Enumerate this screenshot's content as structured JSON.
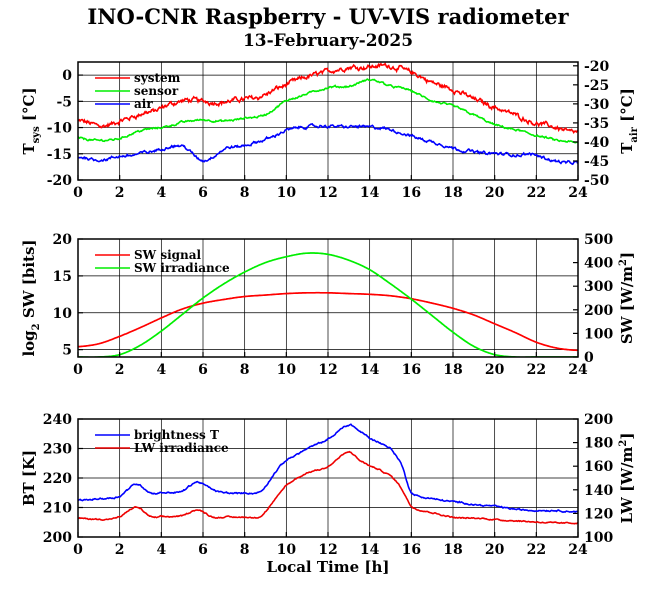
{
  "header": {
    "title": "INO-CNR Raspberry - UV-VIS radiometer",
    "date": "13-February-2025"
  },
  "chart_data": [
    {
      "type": "line",
      "xlim": [
        0,
        24
      ],
      "xticks": [
        "0",
        "2",
        "4",
        "6",
        "8",
        "10",
        "12",
        "14",
        "16",
        "18",
        "20",
        "22",
        "24"
      ],
      "ylim": [
        -20,
        2.5
      ],
      "yticks": [
        "0",
        "-5",
        "-10",
        "-15",
        "-20"
      ],
      "ylabel": "T",
      "ylabel_sub": "sys",
      "ylabel_unit": "[°C]",
      "y2lim": [
        -50,
        -19
      ],
      "y2ticks": [
        "-20",
        "-25",
        "-30",
        "-35",
        "-40",
        "-45",
        "-50"
      ],
      "y2label": "T",
      "y2label_sub": "air",
      "y2label_unit": "[°C]",
      "grid": true,
      "legend": "top-left",
      "series": [
        {
          "name": "system",
          "color": "#ff0000",
          "axis": "left",
          "noise": 0.7,
          "x": [
            0,
            1,
            2,
            3,
            4,
            5,
            6,
            7,
            8,
            9,
            10,
            11,
            12,
            13,
            14,
            15,
            16,
            17,
            18,
            19,
            20,
            21,
            22,
            23,
            24
          ],
          "y": [
            -8.8,
            -9.5,
            -9.0,
            -7.5,
            -6.5,
            -5.0,
            -5.0,
            -5.0,
            -4.5,
            -3.5,
            -1.8,
            -0.5,
            0.8,
            1.5,
            1.8,
            1.8,
            0.5,
            -1.5,
            -2.8,
            -4.5,
            -6.0,
            -7.5,
            -9.0,
            -10.0,
            -10.8
          ]
        },
        {
          "name": "sensor",
          "color": "#00ee00",
          "axis": "left",
          "noise": 0.3,
          "x": [
            0,
            1,
            2,
            3,
            4,
            5,
            6,
            7,
            8,
            9,
            10,
            11,
            12,
            13,
            14,
            15,
            16,
            17,
            18,
            19,
            20,
            21,
            22,
            23,
            24
          ],
          "y": [
            -12.0,
            -12.5,
            -12.0,
            -10.5,
            -10.0,
            -9.0,
            -8.5,
            -8.8,
            -8.3,
            -7.5,
            -5.0,
            -3.5,
            -2.5,
            -2.2,
            -1.0,
            -2.0,
            -3.0,
            -5.0,
            -6.0,
            -7.5,
            -9.5,
            -10.5,
            -11.5,
            -12.5,
            -13.0
          ]
        },
        {
          "name": "air",
          "color": "#0000ff",
          "axis": "right",
          "noise": 0.6,
          "x": [
            0,
            1,
            2,
            3,
            4,
            5,
            6,
            7,
            8,
            9,
            10,
            11,
            12,
            13,
            14,
            15,
            16,
            17,
            18,
            19,
            20,
            21,
            22,
            23,
            24
          ],
          "y": [
            -44.0,
            -44.5,
            -44.0,
            -43.0,
            -42.0,
            -41.0,
            -45.0,
            -42.0,
            -41.0,
            -39.5,
            -37.0,
            -36.0,
            -36.0,
            -36.0,
            -36.0,
            -37.0,
            -38.5,
            -40.0,
            -41.5,
            -42.5,
            -43.0,
            -43.5,
            -43.5,
            -45.0,
            -45.5
          ]
        }
      ]
    },
    {
      "type": "line",
      "xlim": [
        0,
        24
      ],
      "xticks": [
        "0",
        "2",
        "4",
        "6",
        "8",
        "10",
        "12",
        "14",
        "16",
        "18",
        "20",
        "22",
        "24"
      ],
      "ylim": [
        4,
        20
      ],
      "yticks": [
        "20",
        "15",
        "10",
        "5"
      ],
      "ylabel": "log",
      "ylabel_sub": "2",
      "ylabel_unit": "SW [bits]",
      "y2lim": [
        0,
        500
      ],
      "y2ticks": [
        "500",
        "400",
        "300",
        "200",
        "100",
        "0"
      ],
      "y2label": "SW [W/m",
      "y2label_sup": "2",
      "y2label_end": "]",
      "grid": true,
      "legend": "top-left",
      "series": [
        {
          "name": "SW signal",
          "color": "#ff0000",
          "axis": "left",
          "noise": 0,
          "x": [
            0,
            1,
            2,
            3,
            4,
            5,
            6,
            7,
            8,
            9,
            10,
            11,
            12,
            13,
            14,
            15,
            16,
            17,
            18,
            19,
            20,
            21,
            22,
            23,
            24
          ],
          "y": [
            5.4,
            5.8,
            6.8,
            8.0,
            9.3,
            10.5,
            11.3,
            11.8,
            12.2,
            12.4,
            12.6,
            12.7,
            12.7,
            12.6,
            12.5,
            12.3,
            11.9,
            11.3,
            10.6,
            9.7,
            8.5,
            7.3,
            6.0,
            5.2,
            4.9
          ]
        },
        {
          "name": "SW irradiance",
          "color": "#00ee00",
          "axis": "right",
          "noise": 0,
          "x": [
            0,
            1,
            2,
            3,
            4,
            5,
            6,
            7,
            8,
            9,
            10,
            11,
            12,
            13,
            14,
            15,
            16,
            17,
            18,
            19,
            20,
            21,
            22,
            23,
            24
          ],
          "y": [
            0,
            0,
            10,
            50,
            110,
            180,
            250,
            310,
            360,
            400,
            425,
            440,
            435,
            410,
            370,
            310,
            245,
            175,
            105,
            45,
            10,
            0,
            0,
            0,
            0
          ]
        }
      ]
    },
    {
      "type": "line",
      "xlim": [
        0,
        24
      ],
      "xticks": [
        "0",
        "2",
        "4",
        "6",
        "8",
        "10",
        "12",
        "14",
        "16",
        "18",
        "20",
        "22",
        "24"
      ],
      "xlabel": "Local Time [h]",
      "ylim": [
        200,
        240
      ],
      "yticks": [
        "240",
        "230",
        "220",
        "210",
        "200"
      ],
      "ylabel": "BT [K]",
      "y2lim": [
        100,
        200
      ],
      "y2ticks": [
        "200",
        "180",
        "160",
        "140",
        "120",
        "100"
      ],
      "y2label": "LW [W/m",
      "y2label_sup": "2",
      "y2label_end": "]",
      "grid": true,
      "legend": "top-left",
      "series": [
        {
          "name": "brightness T",
          "color": "#0000ff",
          "axis": "left",
          "noise": 0.4,
          "x": [
            0,
            1,
            2,
            2.8,
            3.5,
            4,
            5,
            5.7,
            6.5,
            7,
            8,
            8.8,
            9.5,
            10,
            11,
            12,
            13,
            13.5,
            14,
            15,
            15.5,
            16,
            17,
            18,
            19,
            20,
            21,
            22,
            23,
            24
          ],
          "y": [
            212.5,
            213,
            214,
            218,
            215,
            215,
            215.5,
            218.5,
            216,
            215,
            215,
            215.5,
            222,
            226,
            230,
            233,
            238,
            236,
            233.5,
            230,
            225,
            215,
            213,
            212,
            211,
            210.5,
            209.5,
            209,
            209,
            208.5
          ]
        },
        {
          "name": "LW irradiance",
          "color": "#ee0000",
          "axis": "right",
          "noise": 0.8,
          "x": [
            0,
            1,
            2,
            2.8,
            3.5,
            4,
            5,
            5.7,
            6.5,
            7,
            8,
            8.8,
            9.5,
            10,
            11,
            12,
            13,
            13.5,
            14,
            15,
            15.5,
            16,
            17,
            18,
            19,
            20,
            21,
            22,
            23,
            24
          ],
          "y": [
            116,
            115,
            117,
            125,
            117,
            117,
            118,
            123,
            117,
            117,
            117,
            118,
            132,
            144,
            154,
            160,
            172,
            165,
            160,
            152,
            142,
            126,
            121,
            117,
            116,
            115,
            114,
            113,
            112,
            112
          ]
        }
      ]
    }
  ]
}
